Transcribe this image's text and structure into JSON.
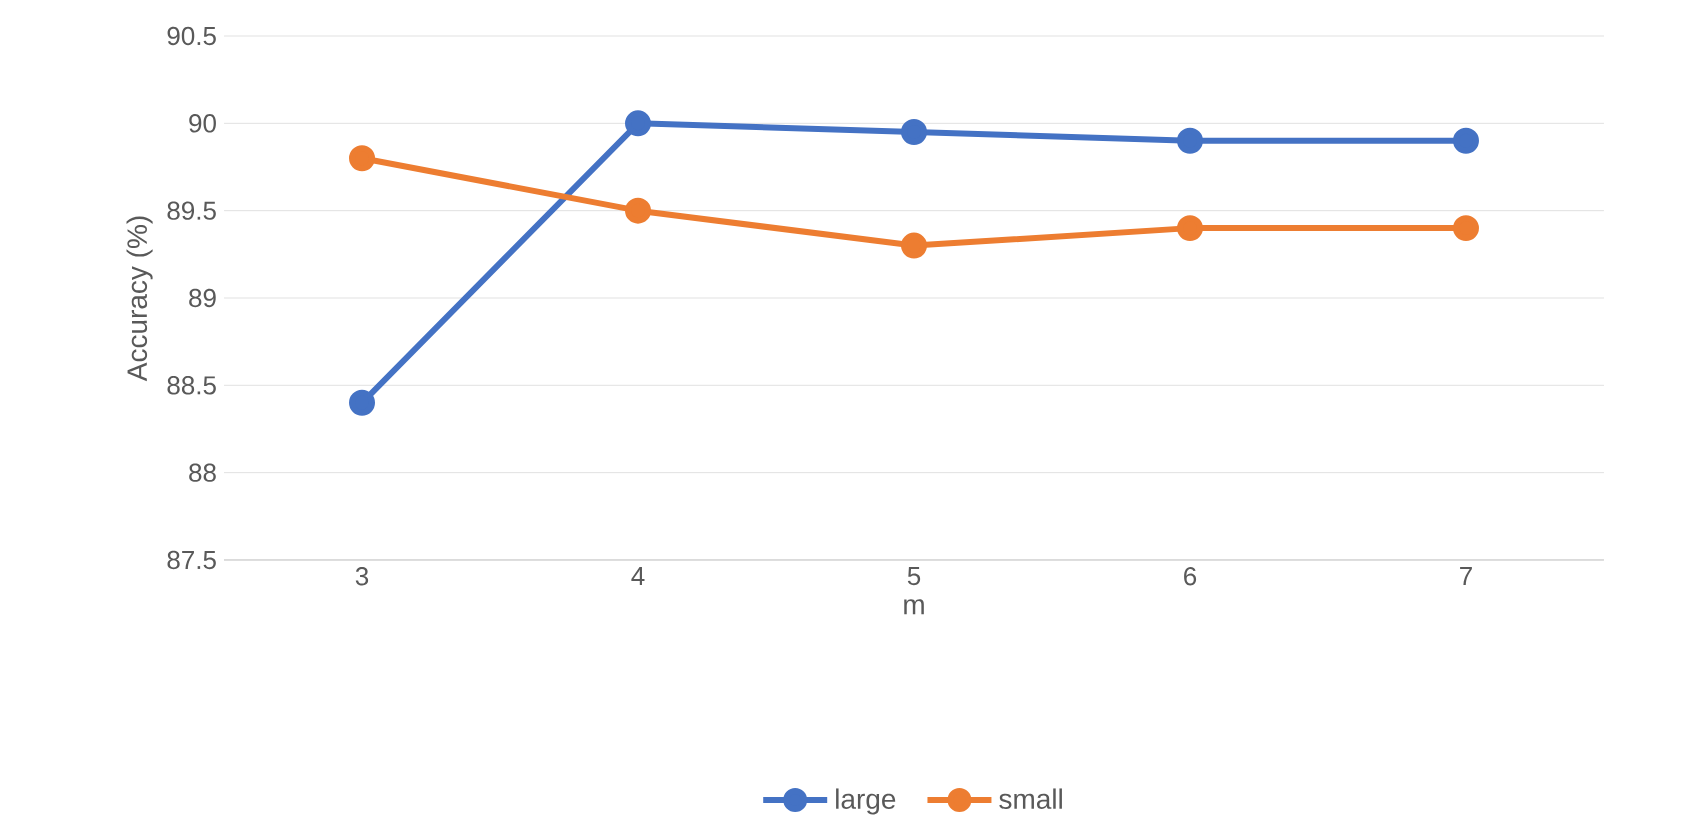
{
  "chart_data": {
    "type": "line",
    "xlabel": "m",
    "ylabel": "Accuracy (%)",
    "categories": [
      "3",
      "4",
      "5",
      "6",
      "7"
    ],
    "series": [
      {
        "name": "large",
        "color": "#4472c4",
        "values": [
          88.4,
          90.0,
          89.95,
          89.9,
          89.9
        ]
      },
      {
        "name": "small",
        "color": "#ed7d31",
        "values": [
          89.8,
          89.5,
          89.3,
          89.4,
          89.4
        ]
      }
    ],
    "ylim": [
      87.5,
      90.5
    ],
    "yticks": [
      87.5,
      88,
      88.5,
      89,
      89.5,
      90,
      90.5
    ],
    "grid": "y",
    "legend": "bottom",
    "marker": "circle",
    "line_style": "solid"
  }
}
